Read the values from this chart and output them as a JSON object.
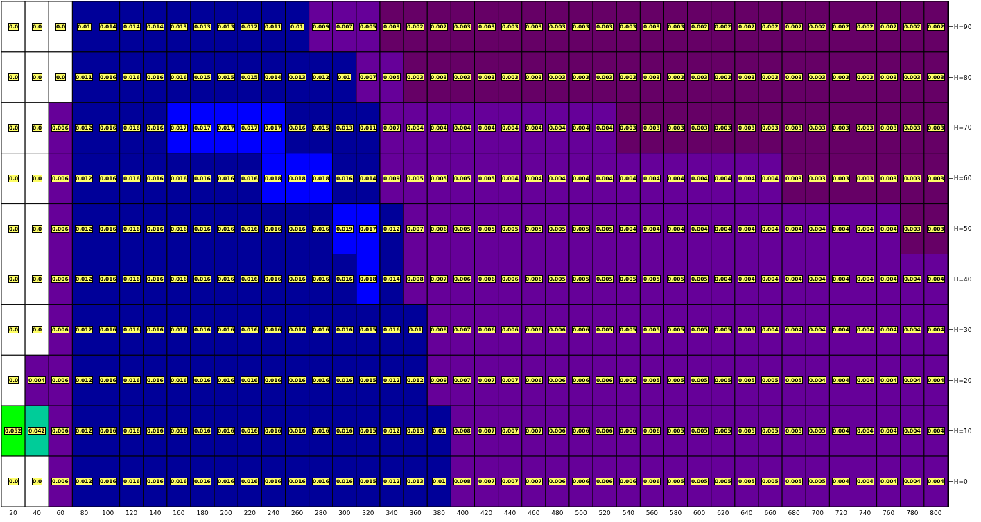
{
  "chart_data": {
    "type": "heatmap",
    "categories": [
      "20",
      "40",
      "60",
      "80",
      "100",
      "120",
      "140",
      "160",
      "180",
      "200",
      "220",
      "240",
      "260",
      "280",
      "300",
      "320",
      "340",
      "360",
      "380",
      "400",
      "420",
      "440",
      "460",
      "480",
      "500",
      "520",
      "540",
      "560",
      "580",
      "600",
      "620",
      "640",
      "660",
      "680",
      "700",
      "720",
      "740",
      "760",
      "780",
      "800"
    ],
    "y_categories": [
      "H=90",
      "H=80",
      "H=70",
      "H=60",
      "H=50",
      "H=40",
      "H=30",
      "H=20",
      "H=10",
      "H=0"
    ],
    "cells": [
      [
        0.0,
        0.0,
        0.0,
        0.01,
        0.014,
        0.014,
        0.014,
        0.013,
        0.013,
        0.013,
        0.012,
        0.011,
        0.01,
        0.009,
        0.007,
        0.005,
        0.003,
        0.002,
        0.002,
        0.003,
        0.003,
        0.003,
        0.003,
        0.003,
        0.003,
        0.003,
        0.003,
        0.003,
        0.003,
        0.002,
        0.002,
        0.002,
        0.002,
        0.002,
        0.002,
        0.002,
        0.002,
        0.002,
        0.002,
        0.002
      ],
      [
        0.0,
        0.0,
        0.0,
        0.011,
        0.016,
        0.016,
        0.016,
        0.016,
        0.015,
        0.015,
        0.015,
        0.014,
        0.013,
        0.012,
        0.01,
        0.007,
        0.005,
        0.003,
        0.003,
        0.003,
        0.003,
        0.003,
        0.003,
        0.003,
        0.003,
        0.003,
        0.003,
        0.003,
        0.003,
        0.003,
        0.003,
        0.003,
        0.003,
        0.003,
        0.003,
        0.003,
        0.003,
        0.003,
        0.003,
        0.003
      ],
      [
        0.0,
        0.0,
        0.006,
        0.012,
        0.016,
        0.016,
        0.016,
        0.017,
        0.017,
        0.017,
        0.017,
        0.017,
        0.016,
        0.015,
        0.013,
        0.011,
        0.007,
        0.004,
        0.004,
        0.004,
        0.004,
        0.004,
        0.004,
        0.004,
        0.004,
        0.004,
        0.003,
        0.003,
        0.003,
        0.003,
        0.003,
        0.003,
        0.003,
        0.003,
        0.003,
        0.003,
        0.003,
        0.003,
        0.003,
        0.003
      ],
      [
        0.0,
        0.0,
        0.006,
        0.012,
        0.016,
        0.016,
        0.016,
        0.016,
        0.016,
        0.016,
        0.016,
        0.018,
        0.018,
        0.018,
        0.016,
        0.014,
        0.009,
        0.005,
        0.005,
        0.005,
        0.005,
        0.004,
        0.004,
        0.004,
        0.004,
        0.004,
        0.004,
        0.004,
        0.004,
        0.004,
        0.004,
        0.004,
        0.004,
        0.003,
        0.003,
        0.003,
        0.003,
        0.003,
        0.003,
        0.003
      ],
      [
        0.0,
        0.0,
        0.006,
        0.012,
        0.016,
        0.016,
        0.016,
        0.016,
        0.016,
        0.016,
        0.016,
        0.016,
        0.016,
        0.016,
        0.019,
        0.017,
        0.012,
        0.007,
        0.006,
        0.005,
        0.005,
        0.005,
        0.005,
        0.005,
        0.005,
        0.005,
        0.004,
        0.004,
        0.004,
        0.004,
        0.004,
        0.004,
        0.004,
        0.004,
        0.004,
        0.004,
        0.004,
        0.004,
        0.003,
        0.003
      ],
      [
        0.0,
        0.0,
        0.006,
        0.012,
        0.016,
        0.016,
        0.016,
        0.016,
        0.016,
        0.016,
        0.016,
        0.016,
        0.016,
        0.016,
        0.016,
        0.018,
        0.014,
        0.008,
        0.007,
        0.006,
        0.006,
        0.006,
        0.006,
        0.005,
        0.005,
        0.005,
        0.005,
        0.005,
        0.005,
        0.005,
        0.004,
        0.004,
        0.004,
        0.004,
        0.004,
        0.004,
        0.004,
        0.004,
        0.004,
        0.004
      ],
      [
        0.0,
        0.0,
        0.006,
        0.012,
        0.016,
        0.016,
        0.016,
        0.016,
        0.016,
        0.016,
        0.016,
        0.016,
        0.016,
        0.016,
        0.016,
        0.015,
        0.016,
        0.01,
        0.008,
        0.007,
        0.006,
        0.006,
        0.006,
        0.006,
        0.006,
        0.005,
        0.005,
        0.005,
        0.005,
        0.005,
        0.005,
        0.005,
        0.004,
        0.004,
        0.004,
        0.004,
        0.004,
        0.004,
        0.004,
        0.004
      ],
      [
        0.0,
        0.004,
        0.006,
        0.012,
        0.016,
        0.016,
        0.016,
        0.016,
        0.016,
        0.016,
        0.016,
        0.016,
        0.016,
        0.016,
        0.016,
        0.015,
        0.012,
        0.012,
        0.009,
        0.007,
        0.007,
        0.007,
        0.006,
        0.006,
        0.006,
        0.006,
        0.006,
        0.005,
        0.005,
        0.005,
        0.005,
        0.005,
        0.005,
        0.005,
        0.004,
        0.004,
        0.004,
        0.004,
        0.004,
        0.004
      ],
      [
        0.052,
        0.042,
        0.006,
        0.012,
        0.016,
        0.016,
        0.016,
        0.016,
        0.016,
        0.016,
        0.016,
        0.016,
        0.016,
        0.016,
        0.016,
        0.015,
        0.012,
        0.013,
        0.01,
        0.008,
        0.007,
        0.007,
        0.007,
        0.006,
        0.006,
        0.006,
        0.006,
        0.006,
        0.005,
        0.005,
        0.005,
        0.005,
        0.005,
        0.005,
        0.005,
        0.004,
        0.004,
        0.004,
        0.004,
        0.004
      ],
      [
        0.0,
        0.0,
        0.006,
        0.012,
        0.016,
        0.016,
        0.016,
        0.016,
        0.016,
        0.016,
        0.016,
        0.016,
        0.016,
        0.016,
        0.016,
        0.015,
        0.012,
        0.013,
        0.01,
        0.008,
        0.007,
        0.007,
        0.007,
        0.006,
        0.006,
        0.006,
        0.006,
        0.006,
        0.005,
        0.005,
        0.005,
        0.005,
        0.005,
        0.005,
        0.005,
        0.004,
        0.004,
        0.004,
        0.004,
        0.004
      ]
    ],
    "cell_labels": [
      [
        "0.0",
        "0.0",
        "0.0",
        "0.01",
        "0.014",
        "0.014",
        "0.014",
        "0.013",
        "0.013",
        "0.013",
        "0.012",
        "0.011",
        "0.01",
        "0.009",
        "0.007",
        "0.005",
        "0.003",
        "0.002",
        "0.002",
        "0.003",
        "0.003",
        "0.003",
        "0.003",
        "0.003",
        "0.003",
        "0.003",
        "0.003",
        "0.003",
        "0.003",
        "0.002",
        "0.002",
        "0.002",
        "0.002",
        "0.002",
        "0.002",
        "0.002",
        "0.002",
        "0.002",
        "0.002",
        "0.002"
      ],
      [
        "0.0",
        "0.0",
        "0.0",
        "0.011",
        "0.016",
        "0.016",
        "0.016",
        "0.016",
        "0.015",
        "0.015",
        "0.015",
        "0.014",
        "0.013",
        "0.012",
        "0.01",
        "0.007",
        "0.005",
        "0.003",
        "0.003",
        "0.003",
        "0.003",
        "0.003",
        "0.003",
        "0.003",
        "0.003",
        "0.003",
        "0.003",
        "0.003",
        "0.003",
        "0.003",
        "0.003",
        "0.003",
        "0.003",
        "0.003",
        "0.003",
        "0.003",
        "0.003",
        "0.003",
        "0.003",
        "0.003"
      ],
      [
        "0.0",
        "0.0",
        "0.006",
        "0.012",
        "0.016",
        "0.016",
        "0.016",
        "0.017",
        "0.017",
        "0.017",
        "0.017",
        "0.017",
        "0.016",
        "0.015",
        "0.013",
        "0.011",
        "0.007",
        "0.004",
        "0.004",
        "0.004",
        "0.004",
        "0.004",
        "0.004",
        "0.004",
        "0.004",
        "0.004",
        "0.003",
        "0.003",
        "0.003",
        "0.003",
        "0.003",
        "0.003",
        "0.003",
        "0.003",
        "0.003",
        "0.003",
        "0.003",
        "0.003",
        "0.003",
        "0.003"
      ],
      [
        "0.0",
        "0.0",
        "0.006",
        "0.012",
        "0.016",
        "0.016",
        "0.016",
        "0.016",
        "0.016",
        "0.016",
        "0.016",
        "0.018",
        "0.018",
        "0.018",
        "0.016",
        "0.014",
        "0.009",
        "0.005",
        "0.005",
        "0.005",
        "0.005",
        "0.004",
        "0.004",
        "0.004",
        "0.004",
        "0.004",
        "0.004",
        "0.004",
        "0.004",
        "0.004",
        "0.004",
        "0.004",
        "0.004",
        "0.003",
        "0.003",
        "0.003",
        "0.003",
        "0.003",
        "0.003",
        "0.003"
      ],
      [
        "0.0",
        "0.0",
        "0.006",
        "0.012",
        "0.016",
        "0.016",
        "0.016",
        "0.016",
        "0.016",
        "0.016",
        "0.016",
        "0.016",
        "0.016",
        "0.016",
        "0.019",
        "0.017",
        "0.012",
        "0.007",
        "0.006",
        "0.005",
        "0.005",
        "0.005",
        "0.005",
        "0.005",
        "0.005",
        "0.005",
        "0.004",
        "0.004",
        "0.004",
        "0.004",
        "0.004",
        "0.004",
        "0.004",
        "0.004",
        "0.004",
        "0.004",
        "0.004",
        "0.004",
        "0.003",
        "0.003"
      ],
      [
        "0.0",
        "0.0",
        "0.006",
        "0.012",
        "0.016",
        "0.016",
        "0.016",
        "0.016",
        "0.016",
        "0.016",
        "0.016",
        "0.016",
        "0.016",
        "0.016",
        "0.016",
        "0.018",
        "0.014",
        "0.008",
        "0.007",
        "0.006",
        "0.006",
        "0.006",
        "0.006",
        "0.005",
        "0.005",
        "0.005",
        "0.005",
        "0.005",
        "0.005",
        "0.005",
        "0.004",
        "0.004",
        "0.004",
        "0.004",
        "0.004",
        "0.004",
        "0.004",
        "0.004",
        "0.004",
        "0.004"
      ],
      [
        "0.0",
        "0.0",
        "0.006",
        "0.012",
        "0.016",
        "0.016",
        "0.016",
        "0.016",
        "0.016",
        "0.016",
        "0.016",
        "0.016",
        "0.016",
        "0.016",
        "0.016",
        "0.015",
        "0.016",
        "0.01",
        "0.008",
        "0.007",
        "0.006",
        "0.006",
        "0.006",
        "0.006",
        "0.006",
        "0.005",
        "0.005",
        "0.005",
        "0.005",
        "0.005",
        "0.005",
        "0.005",
        "0.004",
        "0.004",
        "0.004",
        "0.004",
        "0.004",
        "0.004",
        "0.004",
        "0.004"
      ],
      [
        "0.0",
        "0.004",
        "0.006",
        "0.012",
        "0.016",
        "0.016",
        "0.016",
        "0.016",
        "0.016",
        "0.016",
        "0.016",
        "0.016",
        "0.016",
        "0.016",
        "0.016",
        "0.015",
        "0.012",
        "0.012",
        "0.009",
        "0.007",
        "0.007",
        "0.007",
        "0.006",
        "0.006",
        "0.006",
        "0.006",
        "0.006",
        "0.005",
        "0.005",
        "0.005",
        "0.005",
        "0.005",
        "0.005",
        "0.005",
        "0.004",
        "0.004",
        "0.004",
        "0.004",
        "0.004",
        "0.004"
      ],
      [
        "0.052",
        "0.042",
        "0.006",
        "0.012",
        "0.016",
        "0.016",
        "0.016",
        "0.016",
        "0.016",
        "0.016",
        "0.016",
        "0.016",
        "0.016",
        "0.016",
        "0.016",
        "0.015",
        "0.012",
        "0.013",
        "0.01",
        "0.008",
        "0.007",
        "0.007",
        "0.007",
        "0.006",
        "0.006",
        "0.006",
        "0.006",
        "0.006",
        "0.005",
        "0.005",
        "0.005",
        "0.005",
        "0.005",
        "0.005",
        "0.005",
        "0.004",
        "0.004",
        "0.004",
        "0.004",
        "0.004"
      ],
      [
        "0.0",
        "0.0",
        "0.006",
        "0.012",
        "0.016",
        "0.016",
        "0.016",
        "0.016",
        "0.016",
        "0.016",
        "0.016",
        "0.016",
        "0.016",
        "0.016",
        "0.016",
        "0.015",
        "0.012",
        "0.013",
        "0.01",
        "0.008",
        "0.007",
        "0.007",
        "0.007",
        "0.006",
        "0.006",
        "0.006",
        "0.006",
        "0.006",
        "0.005",
        "0.005",
        "0.005",
        "0.005",
        "0.005",
        "0.005",
        "0.005",
        "0.004",
        "0.004",
        "0.004",
        "0.004",
        "0.004"
      ]
    ]
  }
}
